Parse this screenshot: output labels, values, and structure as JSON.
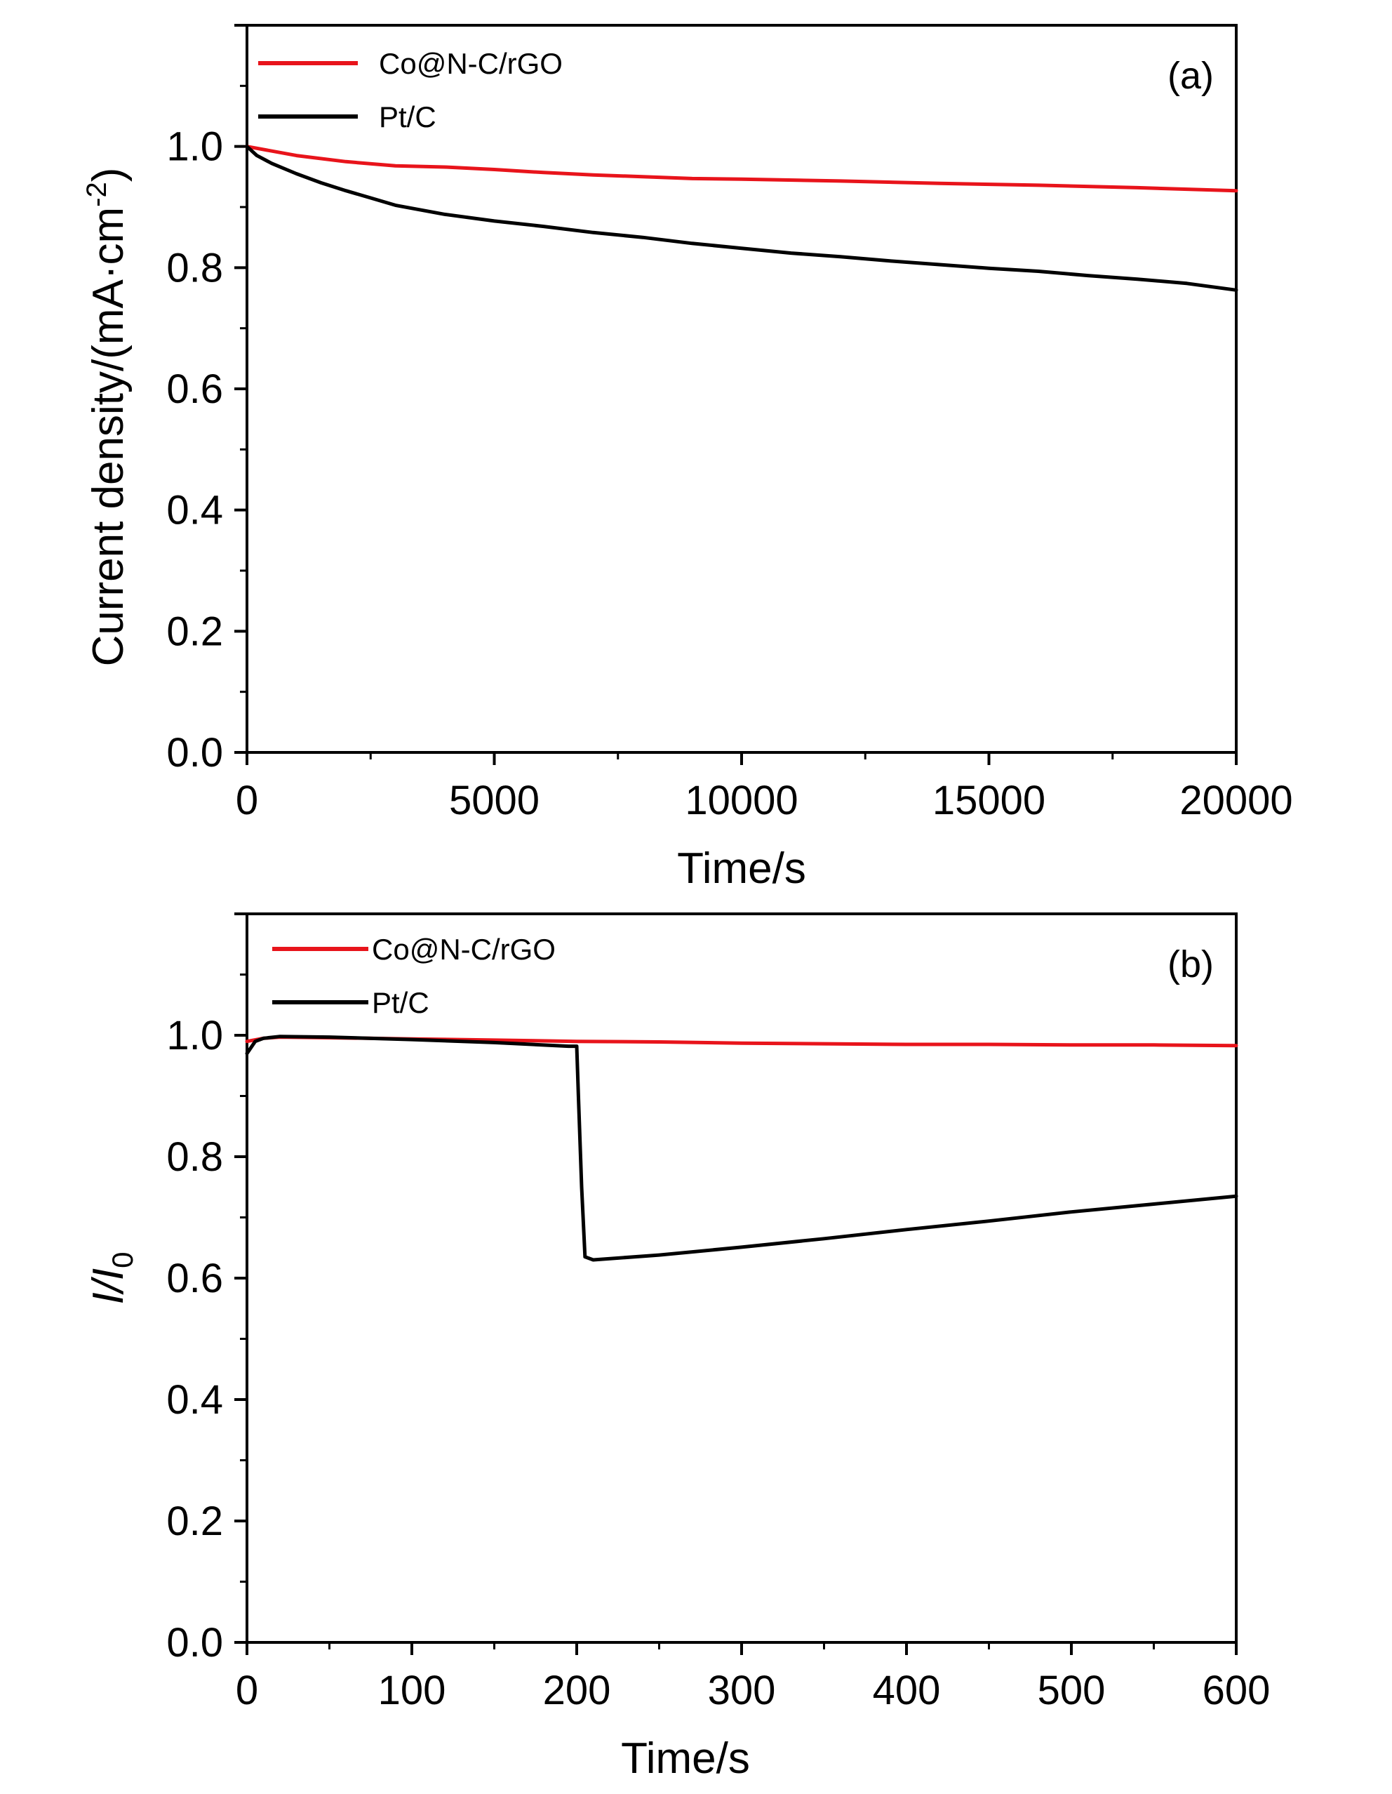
{
  "chart_data": [
    {
      "type": "line",
      "panel_label": "(a)",
      "xlabel": "Time/s",
      "ylabel": "Current density/(mA·cm-2)",
      "ylabel_parts": {
        "main": "Current density/(mA·cm",
        "sup": "-2",
        "close": ")"
      },
      "xlim": [
        0,
        20000
      ],
      "ylim": [
        0,
        1.2
      ],
      "xticks": [
        0,
        5000,
        10000,
        15000,
        20000
      ],
      "xtick_labels": [
        "0",
        "5000",
        "10000",
        "15000",
        "20000"
      ],
      "yticks": [
        0.0,
        0.2,
        0.4,
        0.6,
        0.8,
        1.0
      ],
      "ytick_labels": [
        "0.0",
        "0.2",
        "0.4",
        "0.6",
        "0.8",
        "1.0"
      ],
      "legend_position": "top-left",
      "grid": false,
      "series": [
        {
          "name": "Co@N-C/rGO",
          "color": "#e8141b",
          "x": [
            0,
            1000,
            2000,
            3000,
            4000,
            5000,
            6000,
            7000,
            8000,
            9000,
            10000,
            12000,
            14000,
            16000,
            18000,
            20000
          ],
          "y": [
            1.0,
            0.985,
            0.975,
            0.968,
            0.966,
            0.962,
            0.957,
            0.953,
            0.95,
            0.947,
            0.946,
            0.943,
            0.939,
            0.936,
            0.932,
            0.927
          ]
        },
        {
          "name": "Pt/C",
          "color": "#000000",
          "x": [
            0,
            200,
            500,
            1000,
            1500,
            2000,
            2500,
            3000,
            4000,
            5000,
            6000,
            7000,
            8000,
            9000,
            10000,
            11000,
            12000,
            13000,
            14000,
            15000,
            16000,
            17000,
            18000,
            19000,
            20000
          ],
          "y": [
            1.0,
            0.985,
            0.972,
            0.955,
            0.94,
            0.927,
            0.915,
            0.903,
            0.888,
            0.877,
            0.868,
            0.858,
            0.85,
            0.84,
            0.832,
            0.824,
            0.818,
            0.811,
            0.805,
            0.799,
            0.794,
            0.787,
            0.781,
            0.774,
            0.763
          ]
        }
      ]
    },
    {
      "type": "line",
      "panel_label": "(b)",
      "xlabel": "Time/s",
      "ylabel": "I/I0",
      "ylabel_parts": {
        "main": "I/I",
        "sub": "0"
      },
      "xlim": [
        0,
        600
      ],
      "ylim": [
        0,
        1.2
      ],
      "xticks": [
        0,
        100,
        200,
        300,
        400,
        500,
        600
      ],
      "xtick_labels": [
        "0",
        "100",
        "200",
        "300",
        "400",
        "500",
        "600"
      ],
      "yticks": [
        0.0,
        0.2,
        0.4,
        0.6,
        0.8,
        1.0
      ],
      "ytick_labels": [
        "0.0",
        "0.2",
        "0.4",
        "0.6",
        "0.8",
        "1.0"
      ],
      "legend_position": "top-left",
      "grid": false,
      "series": [
        {
          "name": "Co@N-C/rGO",
          "color": "#e8141b",
          "x": [
            0,
            10,
            20,
            50,
            100,
            150,
            200,
            250,
            300,
            350,
            400,
            450,
            500,
            550,
            600
          ],
          "y": [
            0.99,
            0.995,
            0.997,
            0.996,
            0.994,
            0.992,
            0.99,
            0.989,
            0.987,
            0.986,
            0.985,
            0.985,
            0.984,
            0.984,
            0.983
          ]
        },
        {
          "name": "Pt/C",
          "color": "#000000",
          "x": [
            0,
            5,
            10,
            20,
            50,
            100,
            150,
            195,
            200,
            201,
            203,
            205,
            210,
            250,
            300,
            350,
            400,
            450,
            500,
            550,
            600
          ],
          "y": [
            0.97,
            0.99,
            0.995,
            0.998,
            0.997,
            0.993,
            0.988,
            0.982,
            0.982,
            0.9,
            0.75,
            0.635,
            0.63,
            0.638,
            0.651,
            0.665,
            0.68,
            0.694,
            0.709,
            0.722,
            0.735
          ]
        }
      ]
    }
  ]
}
